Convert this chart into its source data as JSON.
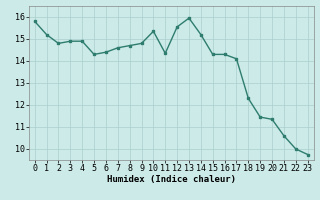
{
  "x": [
    0,
    1,
    2,
    3,
    4,
    5,
    6,
    7,
    8,
    9,
    10,
    11,
    12,
    13,
    14,
    15,
    16,
    17,
    18,
    19,
    20,
    21,
    22,
    23
  ],
  "y": [
    15.8,
    15.2,
    14.8,
    14.9,
    14.9,
    14.3,
    14.4,
    14.6,
    14.7,
    14.8,
    15.35,
    14.35,
    15.55,
    15.95,
    15.2,
    14.3,
    14.3,
    14.1,
    12.3,
    11.45,
    11.35,
    10.6,
    10.0,
    9.75
  ],
  "line_color": "#2e7d6e",
  "marker": "s",
  "markersize": 1.8,
  "linewidth": 1.0,
  "bg_color": "#cceae8",
  "grid_color": "#aacfcd",
  "xlabel": "Humidex (Indice chaleur)",
  "xlim": [
    -0.5,
    23.5
  ],
  "ylim": [
    9.5,
    16.5
  ],
  "yticks": [
    10,
    11,
    12,
    13,
    14,
    15,
    16
  ],
  "xticks": [
    0,
    1,
    2,
    3,
    4,
    5,
    6,
    7,
    8,
    9,
    10,
    11,
    12,
    13,
    14,
    15,
    16,
    17,
    18,
    19,
    20,
    21,
    22,
    23
  ],
  "xlabel_fontsize": 6.5,
  "tick_fontsize": 6.0
}
